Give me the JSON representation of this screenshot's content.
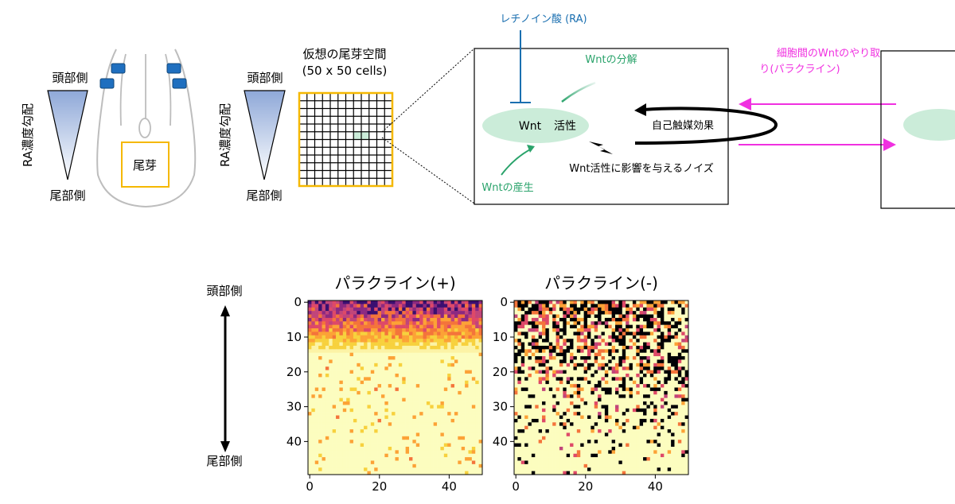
{
  "embryo": {
    "head_label": "頭部側",
    "tail_label": "尾部側",
    "gradient_label": "RA濃度勾配",
    "tailbud_label": "尾芽"
  },
  "grid": {
    "title_line1": "仮想の尾芽空間",
    "title_line2": "(50 x 50 cells)",
    "head_label": "頭部側",
    "tail_label": "尾部側",
    "gradient_label": "RA濃度勾配"
  },
  "cell_model": {
    "ra_label": "レチノイン酸 (RA)",
    "degradation_label": "Wntの分解",
    "wnt_label": "Wnt",
    "activity_label": "活性",
    "autocatalysis_label": "自己触媒効果",
    "noise_label": "Wnt活性に影響を与えるノイズ",
    "production_label": "Wntの産生",
    "paracrine_line1": "細胞間のWntのやり取",
    "paracrine_line2": "り(パラクライン)"
  },
  "colors": {
    "ra_blue": "#1a6fb0",
    "wnt_green": "#2aa36b",
    "paracrine_magenta": "#f030e0",
    "grid_orange": "#f5b800",
    "wnt_ellipse": "#cbecd9"
  },
  "results": {
    "head_label": "頭部側",
    "tail_label": "尾部側"
  },
  "chart_data": [
    {
      "type": "heatmap",
      "title": "パラクライン(+)",
      "rows": 50,
      "cols": 50,
      "x_ticks": [
        0,
        20,
        40
      ],
      "y_ticks": [
        0,
        10,
        20,
        30,
        40
      ],
      "colormap": "inferno",
      "pattern": "high activity (dark) concentrated in rows 0-12, fading to pale yellow toward row 49"
    },
    {
      "type": "heatmap",
      "title": "パラクライン(-)",
      "rows": 50,
      "cols": 50,
      "x_ticks": [
        0,
        20,
        40
      ],
      "y_ticks": [
        0,
        10,
        20,
        30,
        40
      ],
      "colormap": "inferno",
      "pattern": "dark salt-and-pepper cells dense at rows 0-15, sparser toward row 49"
    }
  ]
}
